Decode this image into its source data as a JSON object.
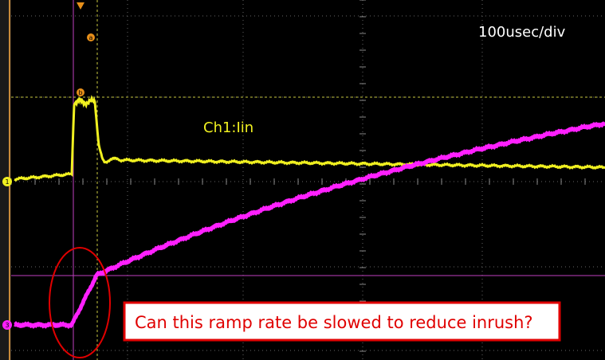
{
  "annotations": {
    "timebase": "100usec/div",
    "channel_label": "Ch1:Iin",
    "question": "Can this ramp rate be slowed to reduce inrush?"
  },
  "markers": {
    "cursor_a": "a",
    "cursor_b": "b",
    "channel_1": "1",
    "channel_3": "3"
  }
}
